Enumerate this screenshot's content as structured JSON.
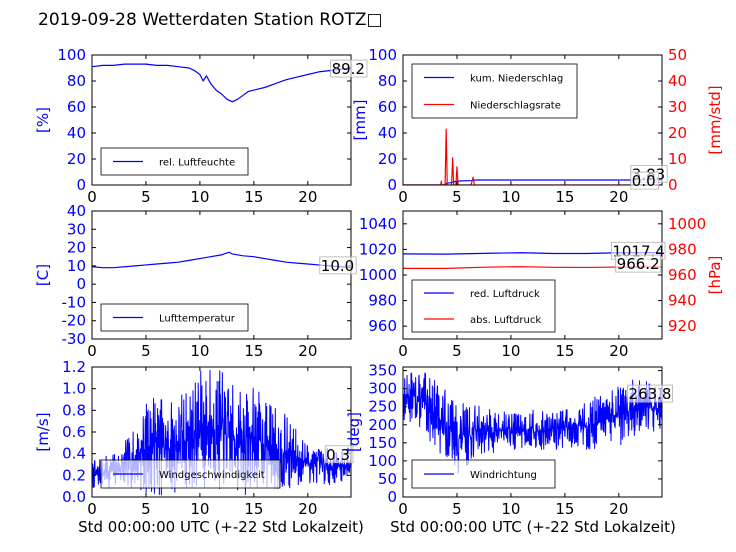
{
  "figure": {
    "title": "2019-09-28 Wetterdaten Station ROTZ□",
    "xlabel": "Std 00:00:00 UTC (+-22 Std Lokalzeit)"
  },
  "colors": {
    "blue": "#0000ff",
    "red": "#ff0000",
    "axis": "#000000"
  },
  "chart_data": [
    {
      "type": "line",
      "ylabel": "[%]",
      "xlim": [
        0,
        24
      ],
      "ylim": [
        0,
        100
      ],
      "xticks": [
        0,
        5,
        10,
        15,
        20
      ],
      "yticks": [
        0,
        20,
        40,
        60,
        80,
        100
      ],
      "annotations": [
        {
          "text": "89.2",
          "x": 22.2,
          "y": 89.2
        }
      ],
      "legend": {
        "placement": "lower-left",
        "entries": [
          "rel. Luftfeuchte"
        ]
      },
      "series": [
        {
          "name": "rel. Luftfeuchte",
          "color": "#0000ff",
          "x": [
            0,
            1,
            2,
            3,
            4,
            5,
            6,
            7,
            8,
            9,
            9.5,
            10,
            10.3,
            10.6,
            11,
            11.5,
            12,
            12.5,
            13,
            13.5,
            14,
            14.5,
            15,
            16,
            17,
            18,
            19,
            20,
            21,
            22,
            23,
            24
          ],
          "values": [
            91,
            92,
            92,
            93,
            93,
            93,
            92,
            92,
            91,
            90,
            88,
            85,
            80,
            84,
            78,
            73,
            70,
            66,
            64,
            66,
            69,
            72,
            73,
            75,
            78,
            81,
            83,
            85,
            87,
            88,
            89,
            90
          ]
        }
      ]
    },
    {
      "type": "line",
      "ylabel": "[mm]",
      "ylabel_right": "[mm/std]",
      "xlim": [
        0,
        24
      ],
      "ylim": [
        0,
        100
      ],
      "ylim_right": [
        0,
        50
      ],
      "xticks": [
        0,
        5,
        10,
        15,
        20
      ],
      "yticks": [
        0,
        20,
        40,
        60,
        80,
        100
      ],
      "yticks_right": [
        0,
        10,
        20,
        30,
        40,
        50
      ],
      "annotations": [
        {
          "text": "3.83",
          "x": 21.2,
          "y": 8
        },
        {
          "text": "0.0",
          "x": 21.2,
          "y": 3
        }
      ],
      "legend": {
        "placement": "upper-left",
        "entries": [
          "kum. Niederschlag",
          "Niederschlagsrate"
        ]
      },
      "series": [
        {
          "name": "kum. Niederschlag",
          "color": "#0000ff",
          "axis": "left",
          "x": [
            0,
            3.8,
            4.0,
            4.4,
            4.8,
            5.2,
            6.4,
            6.8,
            24
          ],
          "values": [
            0,
            0,
            1.2,
            1.8,
            2.6,
            3.1,
            3.4,
            3.83,
            3.83
          ]
        },
        {
          "name": "Niederschlagsrate",
          "color": "#ff0000",
          "axis": "right",
          "x": [
            0,
            3.5,
            3.55,
            3.6,
            3.9,
            4.0,
            4.1,
            4.2,
            4.5,
            4.6,
            4.7,
            4.9,
            5.0,
            5.1,
            5.3,
            6.3,
            6.5,
            6.6,
            6.8,
            24
          ],
          "values": [
            0,
            0,
            1.5,
            0,
            0,
            21.5,
            0,
            0,
            0,
            10.5,
            0,
            0,
            7,
            0,
            0,
            0,
            3,
            0,
            0,
            0
          ]
        }
      ]
    },
    {
      "type": "line",
      "ylabel": "[C]",
      "xlim": [
        0,
        24
      ],
      "ylim": [
        -30,
        40
      ],
      "xticks": [
        0,
        5,
        10,
        15,
        20
      ],
      "yticks": [
        -30,
        -20,
        -10,
        0,
        10,
        20,
        30,
        40
      ],
      "annotations": [
        {
          "text": "10.0",
          "x": 21.2,
          "y": 10.0
        }
      ],
      "legend": {
        "placement": "lower-left",
        "entries": [
          "Lufttemperatur"
        ]
      },
      "series": [
        {
          "name": "Lufttemperatur",
          "color": "#0000ff",
          "x": [
            0,
            1,
            2,
            3,
            4,
            5,
            6,
            7,
            8,
            9,
            10,
            11,
            12,
            12.7,
            13,
            14,
            15,
            16,
            17,
            18,
            19,
            20,
            21,
            22,
            23,
            24
          ],
          "values": [
            9.5,
            9,
            9,
            9.5,
            10,
            10.5,
            11,
            11.5,
            12,
            13,
            14,
            15,
            16,
            17.5,
            16.5,
            15.5,
            15,
            14,
            13,
            12,
            11.5,
            11,
            10.5,
            10,
            9.5,
            9
          ]
        }
      ]
    },
    {
      "type": "line",
      "ylabel_right": "[hPa]",
      "xlim": [
        0,
        24
      ],
      "ylim": [
        950,
        1050
      ],
      "ylim_right": [
        910,
        1010
      ],
      "xticks": [
        0,
        5,
        10,
        15,
        20
      ],
      "yticks": [
        960,
        980,
        1000,
        1020,
        1040
      ],
      "yticks_right": [
        920,
        940,
        960,
        980,
        1000
      ],
      "annotations": [
        {
          "text": "1017.4",
          "x": 19.4,
          "y": 1018.5
        },
        {
          "text": "966.2",
          "x": 19.8,
          "y": 1008.5
        }
      ],
      "legend": {
        "placement": "lower-left",
        "entries": [
          "red. Luftdruck",
          "abs. Luftdruck"
        ]
      },
      "series": [
        {
          "name": "red. Luftdruck",
          "color": "#0000ff",
          "axis": "left",
          "x": [
            0,
            4,
            8,
            11,
            14,
            17,
            20,
            24
          ],
          "values": [
            1016.5,
            1016.3,
            1017,
            1017.4,
            1016.8,
            1016.8,
            1017.4,
            1017.5
          ]
        },
        {
          "name": "abs. Luftdruck",
          "color": "#ff0000",
          "axis": "right",
          "x": [
            0,
            4,
            8,
            11,
            14,
            17,
            20,
            24
          ],
          "values": [
            965.2,
            965.2,
            966.2,
            966.5,
            966,
            965.9,
            966.2,
            966.3
          ]
        }
      ]
    },
    {
      "type": "line",
      "ylabel": "[m/s]",
      "xlim": [
        0,
        24
      ],
      "ylim": [
        0,
        1.2
      ],
      "xticks": [
        0,
        5,
        10,
        15,
        20
      ],
      "yticks": [
        0.0,
        0.2,
        0.4,
        0.6,
        0.8,
        1.0,
        1.2
      ],
      "ytick_labels": [
        "0.0",
        "0.2",
        "0.4",
        "0.6",
        "0.8",
        "1.0",
        "1.2"
      ],
      "annotations": [
        {
          "text": "0.3",
          "x": 21.7,
          "y": 0.39
        }
      ],
      "legend": {
        "placement": "lower-left",
        "entries": [
          "Windgeschwindigkeit"
        ]
      },
      "series": [
        {
          "name": "Windgeschwindigkeit",
          "color": "#0000ff",
          "noisy": true,
          "seed": 7,
          "x": [
            0,
            1,
            2,
            3,
            4,
            5,
            6,
            7,
            8,
            9,
            10,
            11,
            12,
            13,
            14,
            15,
            16,
            17,
            18,
            19,
            20,
            21,
            22,
            23,
            24
          ],
          "values": [
            0.2,
            0.22,
            0.25,
            0.3,
            0.35,
            0.45,
            0.5,
            0.45,
            0.5,
            0.55,
            0.6,
            0.65,
            0.6,
            0.55,
            0.5,
            0.55,
            0.5,
            0.45,
            0.4,
            0.35,
            0.32,
            0.3,
            0.28,
            0.28,
            0.3
          ],
          "amp": [
            0.1,
            0.1,
            0.12,
            0.15,
            0.2,
            0.3,
            0.35,
            0.3,
            0.35,
            0.35,
            0.4,
            0.45,
            0.4,
            0.35,
            0.35,
            0.35,
            0.3,
            0.3,
            0.25,
            0.2,
            0.15,
            0.12,
            0.12,
            0.1,
            0.1
          ]
        }
      ]
    },
    {
      "type": "line",
      "ylabel": "[deg]",
      "xlim": [
        0,
        24
      ],
      "ylim": [
        0,
        360
      ],
      "xticks": [
        0,
        5,
        10,
        15,
        20
      ],
      "yticks": [
        0,
        50,
        100,
        150,
        200,
        250,
        300,
        350
      ],
      "annotations": [
        {
          "text": "263.8",
          "x": 20.9,
          "y": 285
        }
      ],
      "legend": {
        "placement": "lower-left",
        "entries": [
          "Windrichtung"
        ]
      },
      "series": [
        {
          "name": "Windrichtung",
          "color": "#0000ff",
          "noisy": true,
          "seed": 13,
          "x": [
            0,
            1,
            2,
            3,
            4,
            5,
            6,
            7,
            8,
            9,
            10,
            11,
            12,
            13,
            14,
            15,
            16,
            17,
            18,
            19,
            20,
            21,
            22,
            23,
            24
          ],
          "values": [
            270,
            280,
            260,
            230,
            200,
            160,
            170,
            190,
            180,
            185,
            180,
            190,
            185,
            180,
            185,
            195,
            200,
            195,
            205,
            215,
            225,
            240,
            250,
            245,
            250
          ],
          "amp": [
            50,
            50,
            60,
            70,
            70,
            80,
            60,
            50,
            45,
            40,
            40,
            40,
            40,
            40,
            40,
            40,
            45,
            50,
            55,
            55,
            60,
            60,
            55,
            50,
            50
          ]
        }
      ]
    }
  ]
}
